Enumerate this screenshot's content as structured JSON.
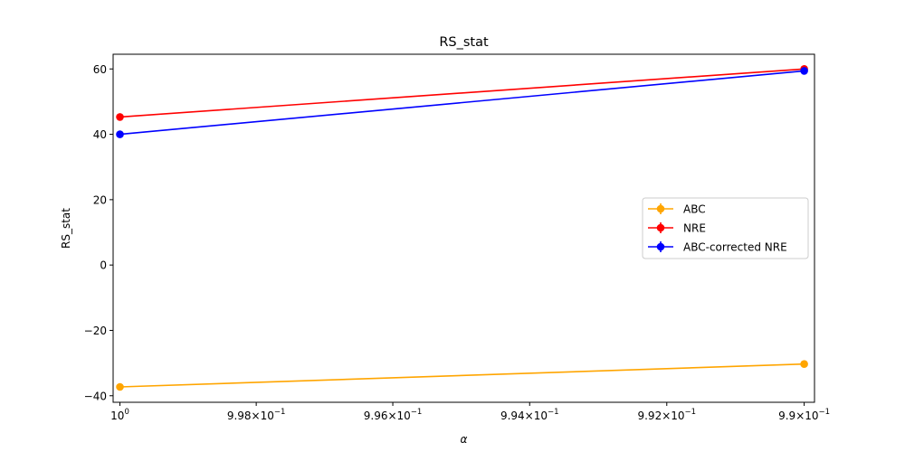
{
  "chart_data": {
    "type": "line",
    "title": "RS_stat",
    "xlabel": "α",
    "ylabel": "RS_stat",
    "x_scale": "log",
    "x_inverted": true,
    "xlim": [
      1.0001,
      0.98985
    ],
    "ylim": [
      -42,
      64.5
    ],
    "x": [
      1.0,
      0.99
    ],
    "x_ticks": [
      {
        "value": 1.0,
        "base": "10",
        "exp": "0"
      },
      {
        "value": 0.998,
        "base": "9.98×10",
        "exp": "−1"
      },
      {
        "value": 0.996,
        "base": "9.96×10",
        "exp": "−1"
      },
      {
        "value": 0.994,
        "base": "9.94×10",
        "exp": "−1"
      },
      {
        "value": 0.992,
        "base": "9.92×10",
        "exp": "−1"
      },
      {
        "value": 0.99,
        "base": "9.9×10",
        "exp": "−1"
      }
    ],
    "y_ticks": [
      {
        "value": 60,
        "label": "60"
      },
      {
        "value": 40,
        "label": "40"
      },
      {
        "value": 20,
        "label": "20"
      },
      {
        "value": 0,
        "label": "0"
      },
      {
        "value": -20,
        "label": "−20"
      },
      {
        "value": -40,
        "label": "−40"
      }
    ],
    "series": [
      {
        "name": "ABC",
        "color": "#ffa500",
        "values": [
          -37.3,
          -30.3
        ]
      },
      {
        "name": "NRE",
        "color": "#ff0000",
        "values": [
          45.3,
          60.0
        ]
      },
      {
        "name": "ABC-corrected NRE",
        "color": "#0000ff",
        "values": [
          40.0,
          59.4
        ]
      }
    ],
    "legend_position": "center-right",
    "grid": false
  }
}
